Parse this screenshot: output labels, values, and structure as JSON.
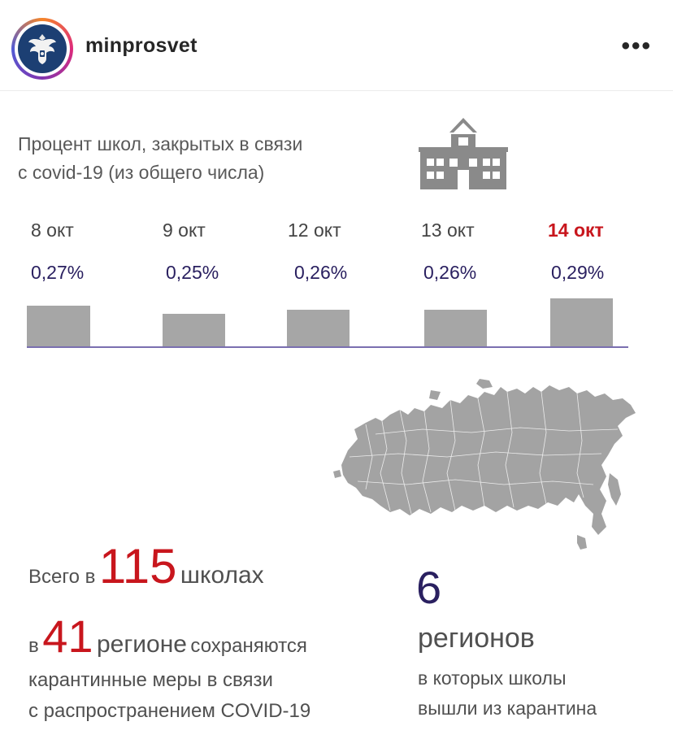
{
  "header": {
    "username": "minprosvet",
    "more_label": "•••",
    "avatar_icon": "coat-of-arms-icon"
  },
  "infographic": {
    "title_line1": "Процент школ, закрытых в связи",
    "title_line2": "с covid-19 (из общего числа)",
    "icon": "school-building-icon",
    "highlight_color": "#c8161d",
    "value_color": "#2a2060"
  },
  "chart_data": {
    "type": "bar",
    "categories": [
      "8 окт",
      "9 окт",
      "12 окт",
      "13 окт",
      "14 окт"
    ],
    "values": [
      0.27,
      0.25,
      0.26,
      0.26,
      0.29
    ],
    "value_labels": [
      "0,27%",
      "0,25%",
      "0,26%",
      "0,26%",
      "0,29%"
    ],
    "highlighted_category": "14 окт",
    "title": "Процент школ, закрытых в связи с covid-19 (из общего числа)",
    "xlabel": "",
    "ylabel": ""
  },
  "stats": {
    "schools_prefix": "Всего в",
    "schools_count": "115",
    "schools_suffix": "школах",
    "regions_prefix": "в",
    "regions_count": "41",
    "regions_word": "регионе",
    "regions_tail": "сохраняются",
    "desc_line1": "карантинные меры в связи",
    "desc_line2": "с распространением COVID-19",
    "released_count": "6",
    "released_word": "регионов",
    "released_line1": "в которых школы",
    "released_line2": "вышли из карантина"
  },
  "map_icon": "russia-map-icon"
}
